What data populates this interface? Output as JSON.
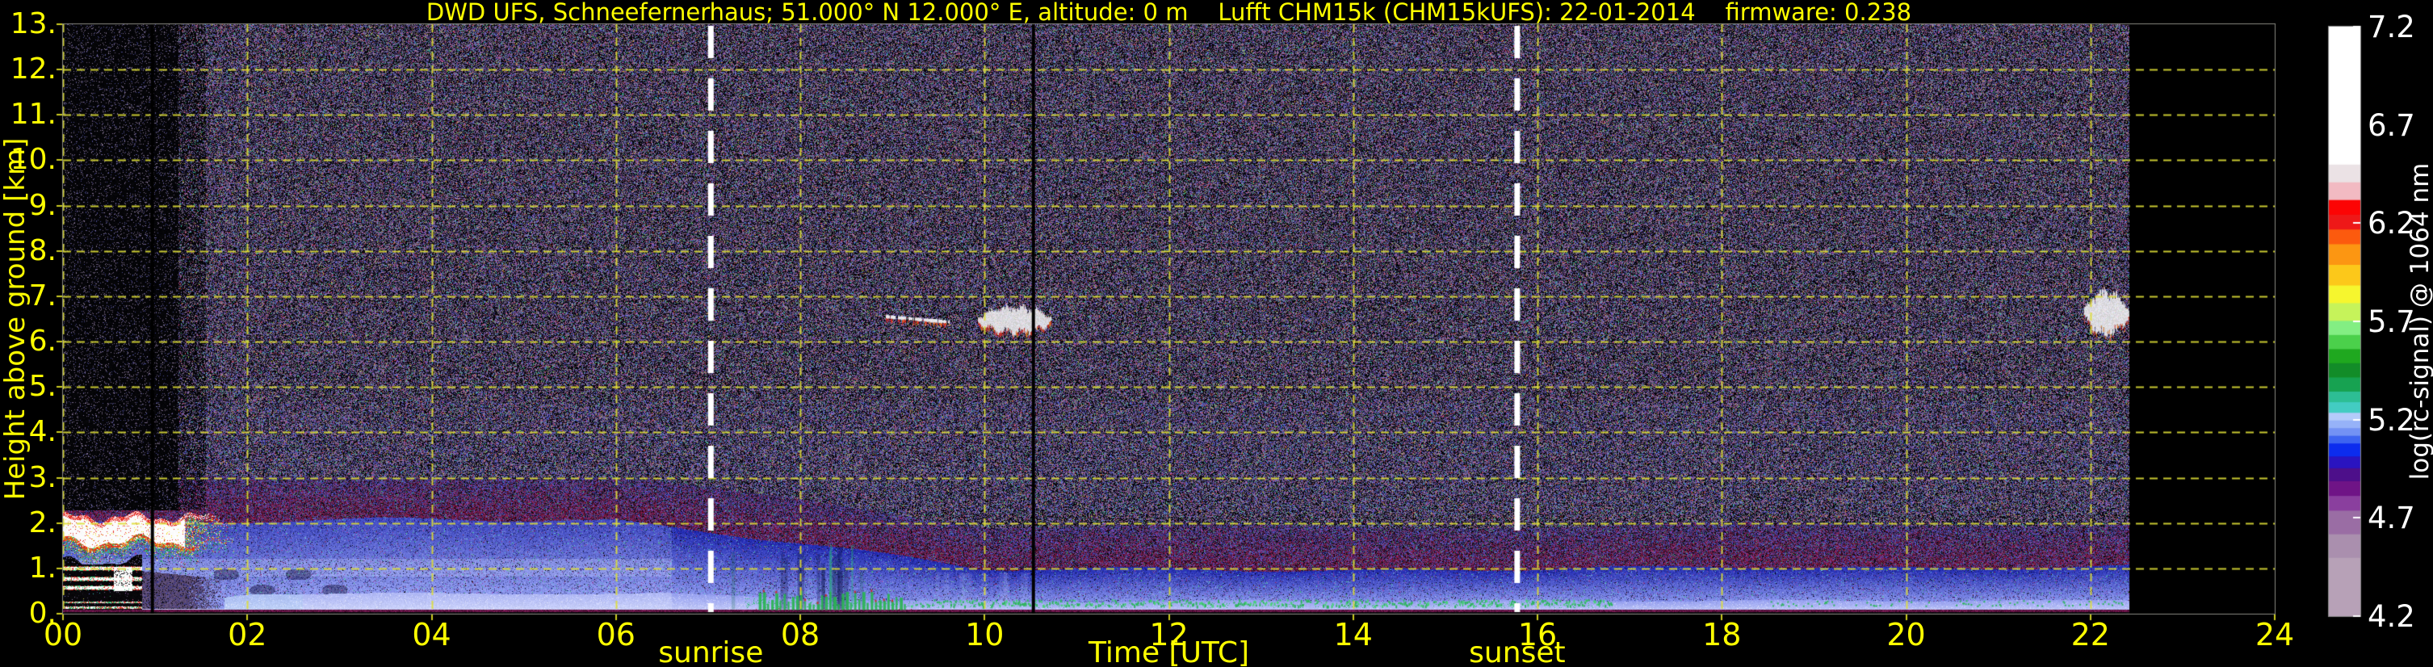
{
  "title": "DWD UFS, Schneefernerhaus; 51.000° N 12.000° E, altitude: 0 m    Lufft CHM15k (CHM15kUFS): 22-01-2014    firmware: 0.238",
  "colors": {
    "background": "#000000",
    "label_yellow": "#ffff00",
    "colorbar_text": "#ffffff",
    "gridline": "#dede36",
    "sun_marker": "#ffffff",
    "frame": "#8a8a82"
  },
  "axes": {
    "x": {
      "label": "Time [UTC]",
      "tick_labels": [
        "00",
        "02",
        "04",
        "06",
        "08",
        "10",
        "12",
        "14",
        "16",
        "18",
        "20",
        "22",
        "24"
      ],
      "tick_hours": [
        0,
        2,
        4,
        6,
        8,
        10,
        12,
        14,
        16,
        18,
        20,
        22,
        24
      ]
    },
    "y": {
      "label": "Height above ground [km]",
      "tick_labels": [
        "0.",
        "1.",
        "2.",
        "3.",
        "4.",
        "5.",
        "6.",
        "7.",
        "8.",
        "9.",
        "10.",
        "11.",
        "12.",
        "13."
      ],
      "tick_km": [
        0,
        1,
        2,
        3,
        4,
        5,
        6,
        7,
        8,
        9,
        10,
        11,
        12,
        13
      ]
    }
  },
  "annotations": {
    "sunrise": {
      "label": "sunrise",
      "hour": 7.03
    },
    "sunset": {
      "label": "sunset",
      "hour": 15.78
    }
  },
  "colorbar": {
    "label": "log(rc-signal) @ 1064 nm",
    "tick_labels": [
      "4.2",
      "4.7",
      "5.2",
      "5.7",
      "6.2",
      "6.7",
      "7.2"
    ],
    "tick_values": [
      4.2,
      4.7,
      5.2,
      5.7,
      6.2,
      6.7,
      7.2
    ],
    "palette_bottom_to_top": [
      {
        "h": 0.1,
        "c": "#b7a1b7"
      },
      {
        "h": 0.04,
        "c": "#aa8fae"
      },
      {
        "h": 0.04,
        "c": "#9a6da4"
      },
      {
        "h": 0.025,
        "c": "#8a3f9e"
      },
      {
        "h": 0.025,
        "c": "#6f1486"
      },
      {
        "h": 0.022,
        "c": "#4d0f8a"
      },
      {
        "h": 0.02,
        "c": "#2a14c0"
      },
      {
        "h": 0.022,
        "c": "#0c2cee"
      },
      {
        "h": 0.013,
        "c": "#3d64f0"
      },
      {
        "h": 0.013,
        "c": "#7392f4"
      },
      {
        "h": 0.013,
        "c": "#96b2f8"
      },
      {
        "h": 0.013,
        "c": "#b4cbfa"
      },
      {
        "h": 0.018,
        "c": "#43ccc2"
      },
      {
        "h": 0.018,
        "c": "#2dbe94"
      },
      {
        "h": 0.024,
        "c": "#17a251"
      },
      {
        "h": 0.024,
        "c": "#128c28"
      },
      {
        "h": 0.024,
        "c": "#1fa81f"
      },
      {
        "h": 0.024,
        "c": "#4bd04b"
      },
      {
        "h": 0.024,
        "c": "#83ee83"
      },
      {
        "h": 0.03,
        "c": "#c6f35a"
      },
      {
        "h": 0.03,
        "c": "#f6f62e"
      },
      {
        "h": 0.035,
        "c": "#fcc81a"
      },
      {
        "h": 0.035,
        "c": "#fc9612"
      },
      {
        "h": 0.025,
        "c": "#fc5a0e"
      },
      {
        "h": 0.025,
        "c": "#ee1818"
      },
      {
        "h": 0.025,
        "c": "#fc0404"
      },
      {
        "h": 0.03,
        "c": "#f2bac2"
      },
      {
        "h": 0.03,
        "c": "#ebe2e5"
      },
      {
        "h": 0.233,
        "c": "#ffffff"
      }
    ]
  },
  "chart_data": {
    "type": "heatmap",
    "title": "DWD UFS, Schneefernerhaus; 51.000° N 12.000° E, altitude: 0 m    Lufft CHM15k (CHM15kUFS): 22-01-2014    firmware: 0.238",
    "xlabel": "Time [UTC]",
    "ylabel": "Height above ground [km]",
    "colorbar_label": "log(rc-signal) @ 1064 nm",
    "xlim": [
      0,
      24
    ],
    "ylim": [
      0,
      13
    ],
    "clim": [
      4.2,
      7.2
    ],
    "grid": "yellow dashed, every 2 h and every 1 km",
    "data_start_hour": 0.0,
    "data_end_hour": 22.42,
    "gap_hours": [
      0.97,
      10.53
    ],
    "sunrise_hour": 7.03,
    "sunset_hour": 15.78,
    "boundary_layer": {
      "hours": [
        0,
        2,
        4,
        6,
        8,
        10,
        12,
        14,
        16,
        18,
        20,
        22.4
      ],
      "top_km": [
        2.0,
        2.05,
        2.1,
        2.05,
        1.57,
        1.0,
        1.0,
        0.95,
        1.0,
        1.05,
        1.0,
        1.05
      ]
    },
    "aerosol_gradient_band": {
      "hours": [
        0,
        2,
        4,
        6,
        8,
        10,
        12,
        14,
        16,
        18,
        20,
        22.4
      ],
      "top_km": [
        3.0,
        3.0,
        3.05,
        3.0,
        2.5,
        1.95,
        1.95,
        1.9,
        1.95,
        2.0,
        1.95,
        2.0
      ]
    },
    "surface_layer": {
      "hours": [
        0,
        0.85,
        2,
        6.5,
        9,
        22.4
      ],
      "top_km": [
        0.12,
        0.12,
        0.45,
        0.45,
        0.28,
        0.3
      ]
    },
    "features": [
      {
        "name": "stratus-cloud-deck",
        "hours": [
          0.0,
          1.9
        ],
        "base_km": 1.5,
        "top_km": 2.1,
        "signal": "saturated white core with red/yellow/green fringe"
      },
      {
        "name": "low-cloud-fragments",
        "hours": [
          0.0,
          0.85
        ],
        "base_km": 0.5,
        "top_km": 1.05,
        "signal": "layered white bands, attenuated black between"
      },
      {
        "name": "attenuated-region",
        "hours": [
          0.0,
          1.5
        ],
        "base_km": 2.28,
        "top_km": 13,
        "signal": "near-black, sparse speckle"
      },
      {
        "name": "cirrus-streak",
        "hours": [
          8.93,
          9.62
        ],
        "base_km": 6.38,
        "top_km": 6.6,
        "signal": "thin white streak"
      },
      {
        "name": "cirrus-patch",
        "hours": [
          9.93,
          10.72
        ],
        "base_km": 6.2,
        "top_km": 6.75,
        "signal": "white patch with red fringe"
      },
      {
        "name": "cloud-at-data-end",
        "hours": [
          21.93,
          22.42
        ],
        "base_km": 6.2,
        "top_km": 7.05,
        "signal": "white blob with red fringe"
      },
      {
        "name": "surface-green-speckle",
        "hours": [
          7.5,
          16.8
        ],
        "base_km": 0.15,
        "top_km": 0.45,
        "signal": "green spikes and dots near ground"
      },
      {
        "name": "ground-return-line",
        "hours": [
          0,
          22.42
        ],
        "base_km": 0.05,
        "top_km": 0.1,
        "signal": "thin maroon line"
      }
    ]
  }
}
